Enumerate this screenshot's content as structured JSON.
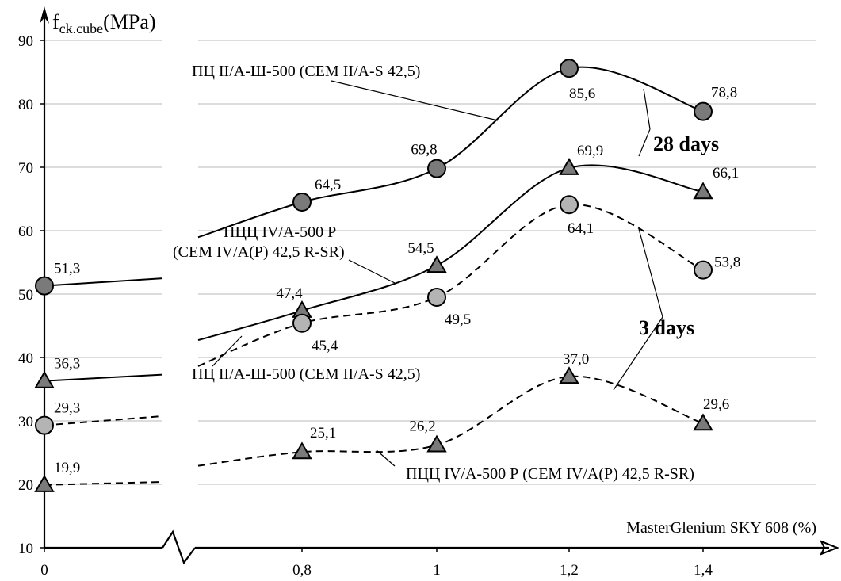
{
  "chart_data": {
    "type": "line",
    "ylabel": "f",
    "ylabel_sub": "ck.cube",
    "ylabel_unit": "(MPa)",
    "xlabel": "MasterGlenium SKY 608 (%)",
    "ylim": [
      10,
      90
    ],
    "y_ticks": [
      "10",
      "20",
      "30",
      "40",
      "50",
      "60",
      "70",
      "80",
      "90"
    ],
    "x_ticks": [
      "0",
      "0,8",
      "1",
      "1,2",
      "1,4"
    ],
    "x_break": true,
    "grid": "horizontal",
    "series": [
      {
        "name": "ПЦ II/А-Ш-500 (CEM II/A-S 42,5)",
        "age": "28 days",
        "marker": "circle",
        "marker_color": "#7a7a7a",
        "line": "solid",
        "x": [
          "0",
          "0,8",
          "1",
          "1,2",
          "1,4"
        ],
        "values": [
          51.3,
          64.5,
          69.8,
          85.6,
          78.8
        ],
        "labels": [
          "51,3",
          "64,5",
          "69,8",
          "85,6",
          "78,8"
        ]
      },
      {
        "name": "ПЦЦ IV/А-500 Р (CEM IV/A(P) 42,5 R-SR)",
        "age": "28 days",
        "marker": "triangle",
        "marker_color": "#7a7a7a",
        "line": "solid",
        "x": [
          "0",
          "0,8",
          "1",
          "1,2",
          "1,4"
        ],
        "values": [
          36.3,
          47.4,
          54.5,
          69.9,
          66.1
        ],
        "labels": [
          "36,3",
          "47,4",
          "54,5",
          "69,9",
          "66,1"
        ]
      },
      {
        "name": "ПЦ II/А-Ш-500 (CEM II/A-S 42,5)",
        "age": "3 days",
        "marker": "circle",
        "marker_color": "#b4b4b4",
        "line": "dashed",
        "x": [
          "0",
          "0,8",
          "1",
          "1,2",
          "1,4"
        ],
        "values": [
          29.3,
          45.4,
          49.5,
          64.1,
          53.8
        ],
        "labels": [
          "29,3",
          "45,4",
          "49,5",
          "64,1",
          "53,8"
        ]
      },
      {
        "name": "ПЦЦ IV/А-500 Р (CEM IV/A(P) 42,5 R-SR)",
        "age": "3 days",
        "marker": "triangle",
        "marker_color": "#7a7a7a",
        "line": "dashed",
        "x": [
          "0",
          "0,8",
          "1",
          "1,2",
          "1,4"
        ],
        "values": [
          19.9,
          25.1,
          26.2,
          37.0,
          29.6
        ],
        "labels": [
          "19,9",
          "25,1",
          "26,2",
          "37,0",
          "29,6"
        ]
      }
    ],
    "annotations": {
      "s1_label": "ПЦ II/А-Ш-500 (CEM II/A-S 42,5)",
      "s2_label_line1": "ПЦЦ IV/А-500 Р",
      "s2_label_line2": "(CEM IV/A(P) 42,5 R-SR)",
      "s3_label": "ПЦ II/А-Ш-500 (CEM II/A-S 42,5)",
      "s4_label": "ПЦЦ IV/А-500 Р (CEM IV/A(P) 42,5 R-SR)",
      "days28": "28 days",
      "days3": "3 days"
    }
  }
}
